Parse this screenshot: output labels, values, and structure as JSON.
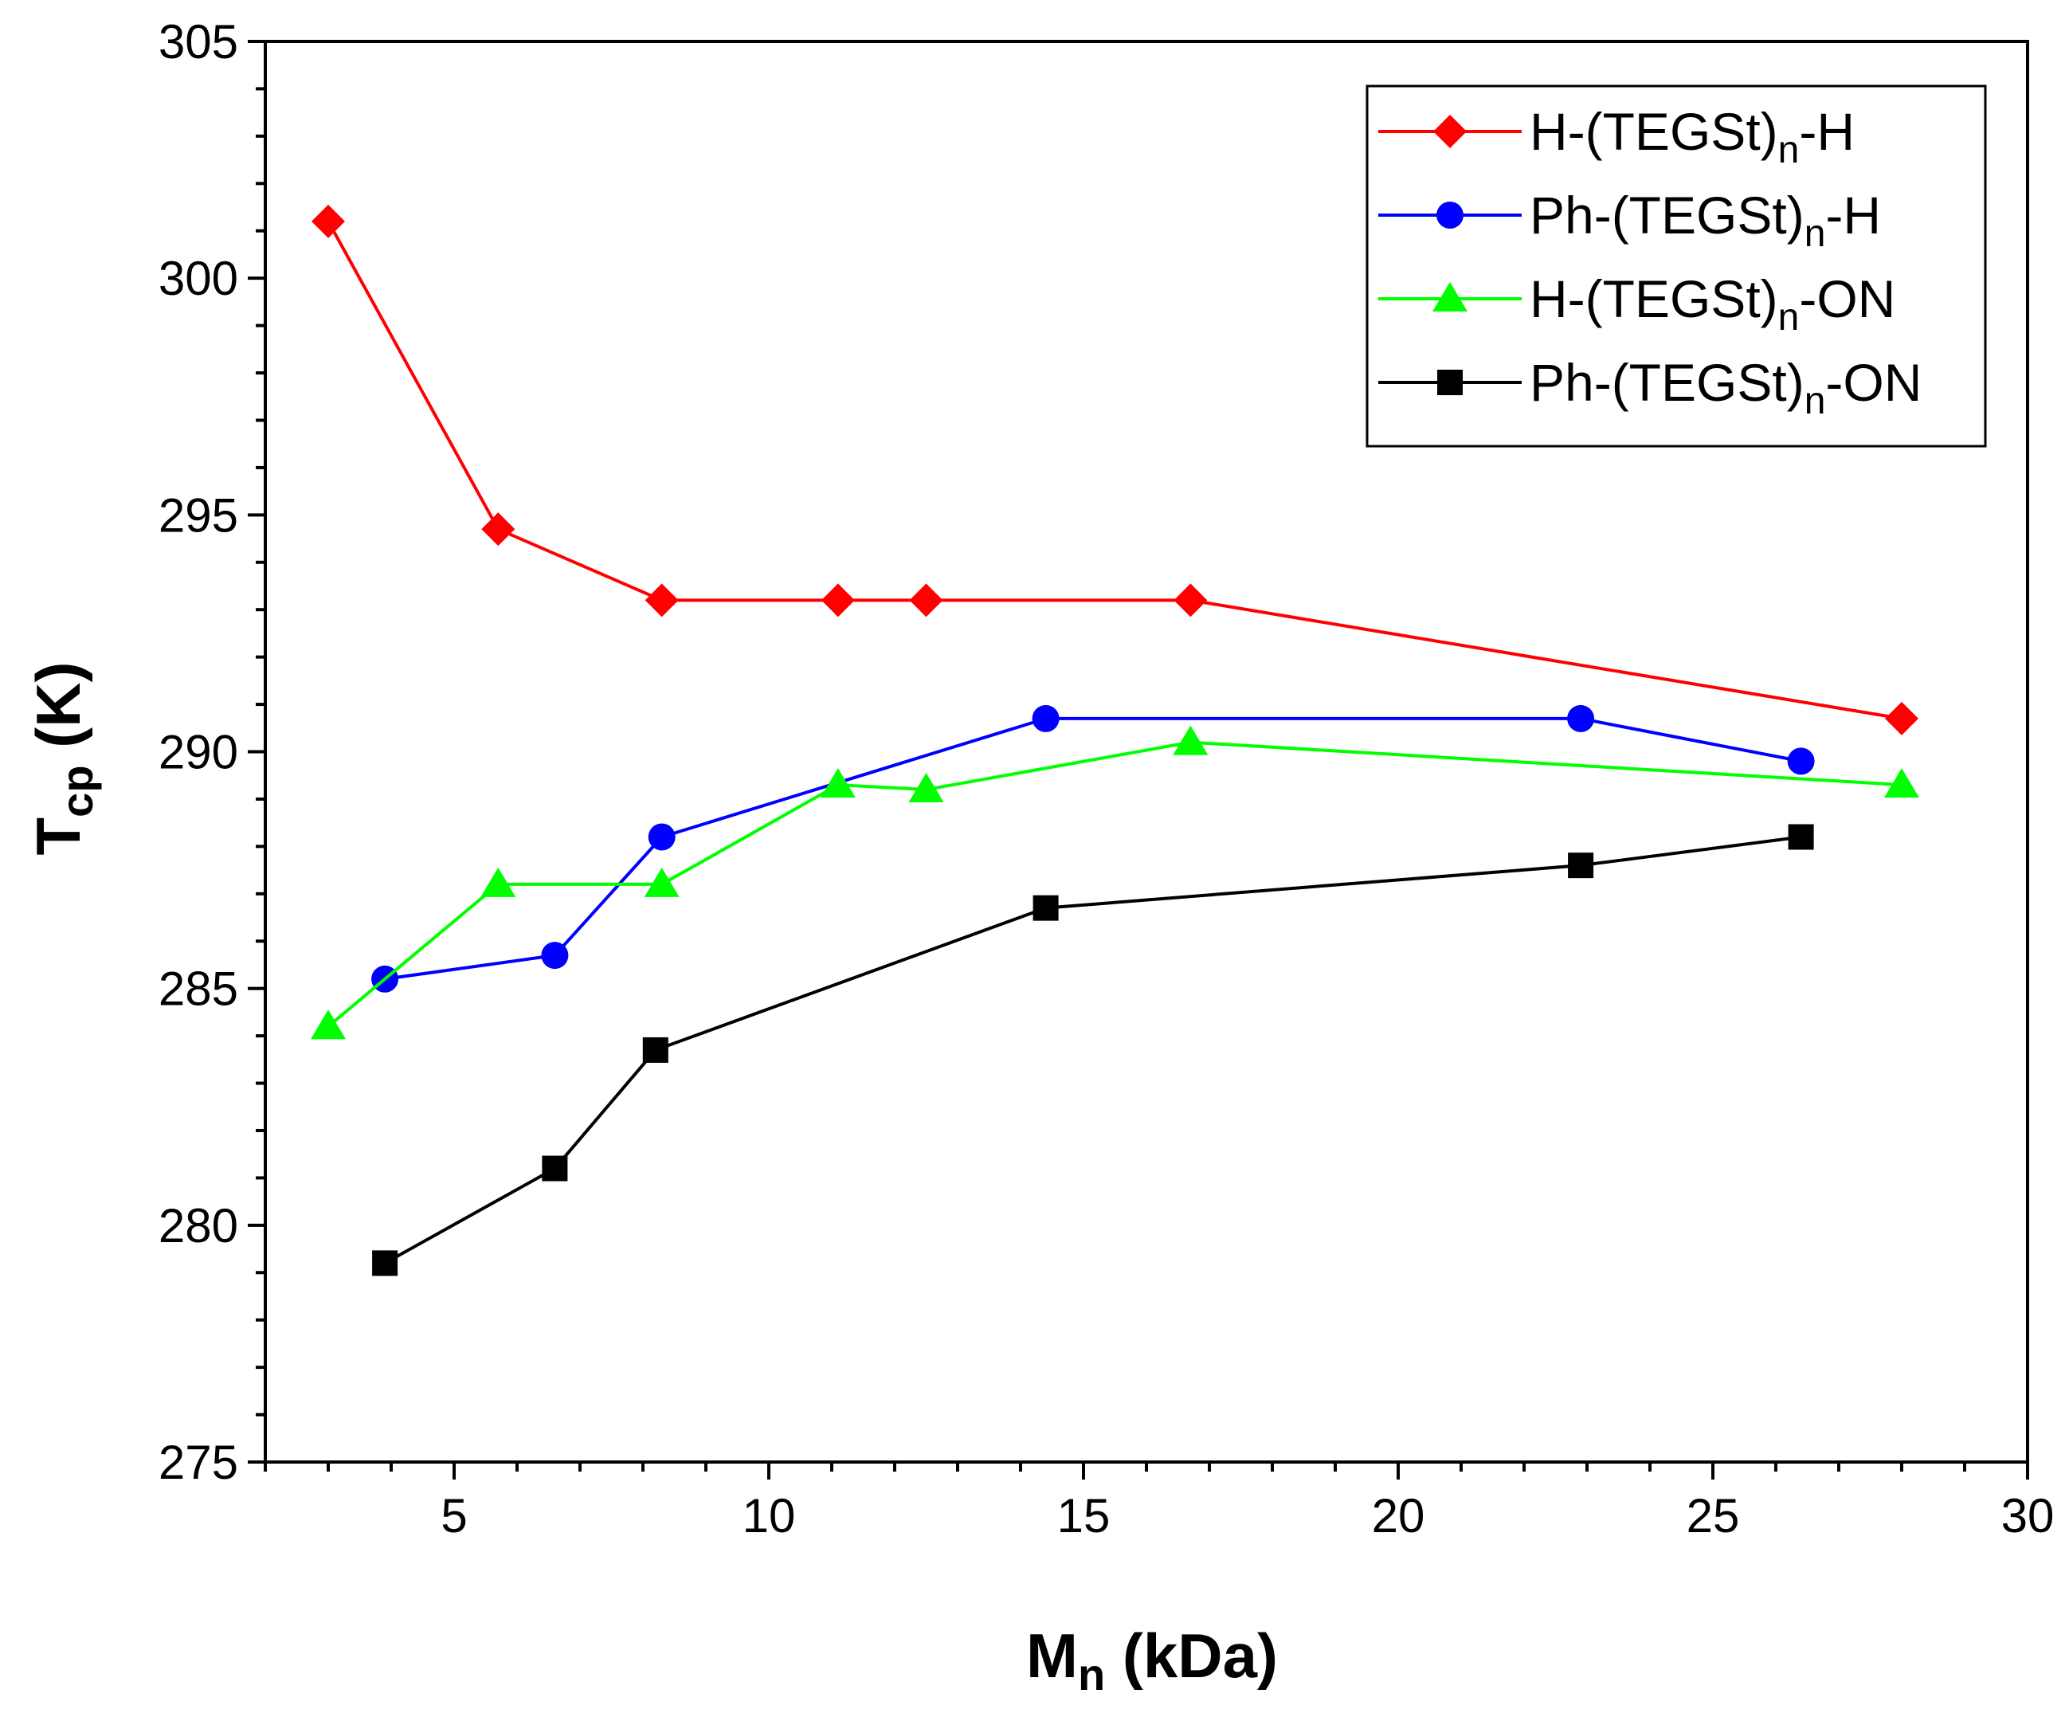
{
  "chart_data": {
    "type": "line",
    "title": "",
    "xlabel": {
      "main": "M",
      "sub": "n",
      "rest": " (kDa)"
    },
    "ylabel": {
      "main": "T",
      "sub": "cp",
      "rest": " (K)"
    },
    "xlim": [
      2,
      30
    ],
    "ylim": [
      275,
      305
    ],
    "xticks": [
      5,
      10,
      15,
      20,
      25,
      30
    ],
    "yticks": [
      275,
      280,
      285,
      290,
      295,
      300,
      305
    ],
    "grid": false,
    "legend_position": "top-right",
    "series": [
      {
        "name": "H-(TEGSt)n-H",
        "label": {
          "pre": "H-(TEGSt)",
          "sub": "n",
          "post": "-H"
        },
        "color": "#ff0000",
        "marker": "diamond",
        "x": [
          3.0,
          5.7,
          8.3,
          11.1,
          12.5,
          16.7,
          28.0
        ],
        "y": [
          301.2,
          294.7,
          293.2,
          293.2,
          293.2,
          293.2,
          290.7
        ]
      },
      {
        "name": "Ph-(TEGSt)n-H",
        "label": {
          "pre": "Ph-(TEGSt)",
          "sub": "n",
          "post": "-H"
        },
        "color": "#0000ff",
        "marker": "circle",
        "x": [
          3.9,
          6.6,
          8.3,
          14.4,
          22.9,
          26.4
        ],
        "y": [
          285.2,
          285.7,
          288.2,
          290.7,
          290.7,
          289.8
        ]
      },
      {
        "name": "H-(TEGSt)n-ON",
        "label": {
          "pre": "H-(TEGSt)",
          "sub": "n",
          "post": "-ON"
        },
        "color": "#00ff00",
        "marker": "triangle",
        "x": [
          3.0,
          5.7,
          8.3,
          11.1,
          12.5,
          16.7,
          28.0
        ],
        "y": [
          284.2,
          287.2,
          287.2,
          289.3,
          289.2,
          290.2,
          289.3
        ]
      },
      {
        "name": "Ph-(TEGSt)n-ON",
        "label": {
          "pre": "Ph-(TEGSt)",
          "sub": "n",
          "post": "-ON"
        },
        "color": "#000000",
        "marker": "square",
        "x": [
          3.9,
          6.6,
          8.2,
          14.4,
          22.9,
          26.4
        ],
        "y": [
          279.2,
          281.2,
          283.7,
          286.7,
          287.6,
          288.2
        ]
      }
    ]
  }
}
